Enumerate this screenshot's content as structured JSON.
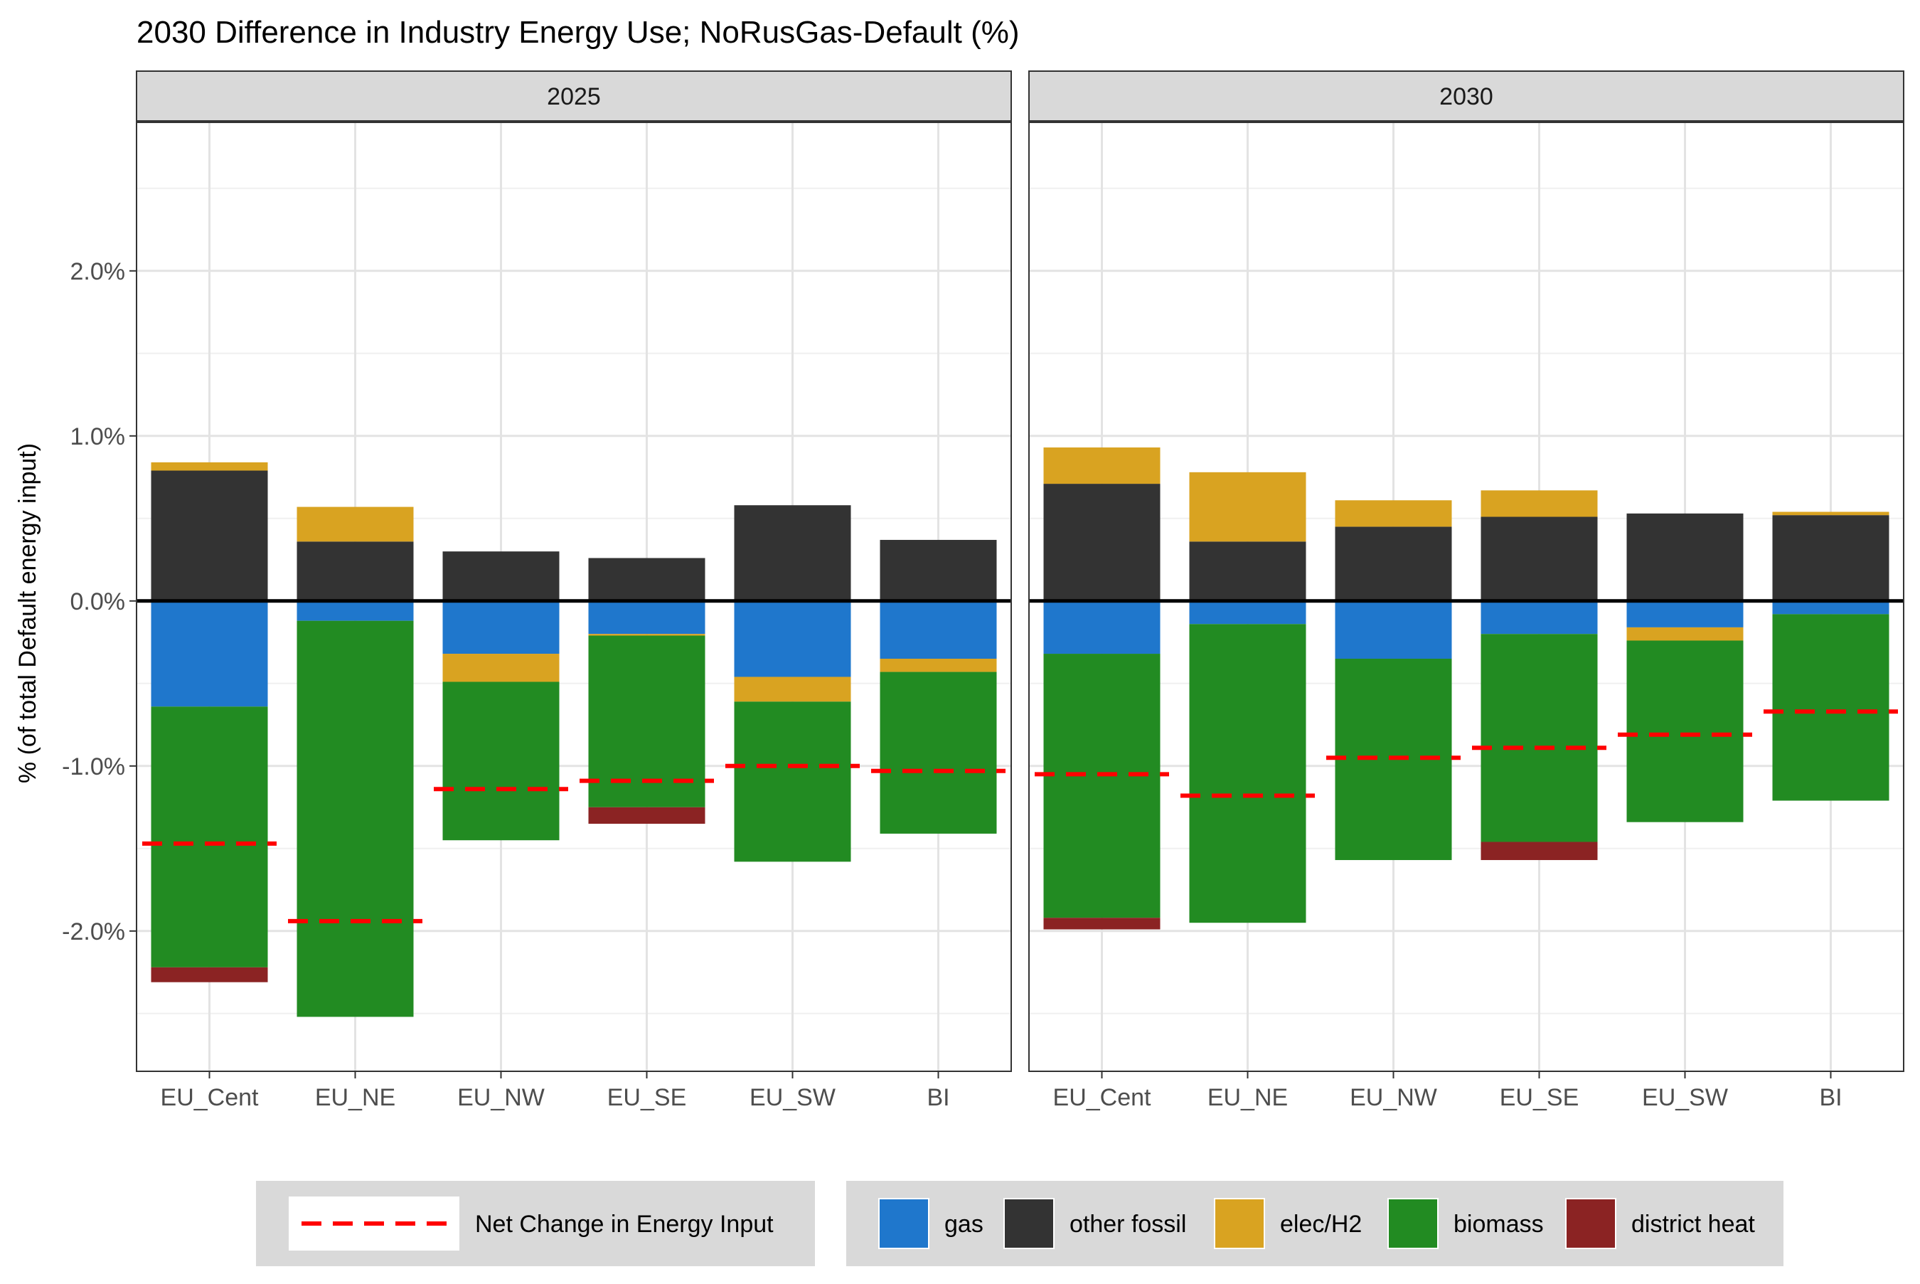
{
  "chart_data": {
    "type": "bar",
    "stacked": true,
    "title": "2030 Difference in Industry Energy Use; NoRusGas-Default (%)",
    "xlabel": "",
    "ylabel": "% (of total Default energy input)",
    "ylim": [
      -2.85,
      2.9
    ],
    "yticks": [
      -2.0,
      -1.0,
      0.0,
      1.0,
      2.0
    ],
    "ytick_labels": [
      "-2.0%",
      "-1.0%",
      "0.0%",
      "1.0%",
      "2.0%"
    ],
    "grid": true,
    "legend_position": "bottom",
    "categories": [
      "EU_Cent",
      "EU_NE",
      "EU_NW",
      "EU_SE",
      "EU_SW",
      "BI"
    ],
    "colors": {
      "gas": "#1f77cc",
      "other fossil": "#333333",
      "elec/H2": "#d9a321",
      "biomass": "#228b22",
      "district heat": "#8b2323",
      "net": "#ff0000"
    },
    "legend": {
      "line": [
        {
          "key": "net",
          "label": "Net Change in Energy Input"
        }
      ],
      "fill": [
        {
          "key": "gas",
          "label": "gas"
        },
        {
          "key": "other fossil",
          "label": "other fossil"
        },
        {
          "key": "elec/H2",
          "label": "elec/H2"
        },
        {
          "key": "biomass",
          "label": "biomass"
        },
        {
          "key": "district heat",
          "label": "district heat"
        }
      ]
    },
    "stack_order": {
      "positive": [
        "other fossil",
        "elec/H2"
      ],
      "negative": [
        "gas",
        "elec/H2",
        "biomass",
        "district heat"
      ]
    },
    "panels": [
      {
        "title": "2025",
        "series": [
          {
            "name": "gas",
            "values": [
              -0.64,
              -0.12,
              -0.32,
              -0.2,
              -0.46,
              -0.35
            ]
          },
          {
            "name": "other fossil",
            "values": [
              0.79,
              0.36,
              0.3,
              0.26,
              0.58,
              0.37
            ]
          },
          {
            "name": "elec/H2",
            "values": [
              0.05,
              0.21,
              -0.17,
              -0.01,
              -0.15,
              -0.08
            ]
          },
          {
            "name": "biomass",
            "values": [
              -1.58,
              -2.4,
              -0.96,
              -1.04,
              -0.97,
              -0.98
            ]
          },
          {
            "name": "district heat",
            "values": [
              -0.09,
              0.0,
              0.0,
              -0.1,
              0.0,
              0.0
            ]
          }
        ],
        "net": [
          -1.47,
          -1.94,
          -1.14,
          -1.09,
          -1.0,
          -1.03
        ]
      },
      {
        "title": "2030",
        "series": [
          {
            "name": "gas",
            "values": [
              -0.32,
              -0.14,
              -0.35,
              -0.2,
              -0.16,
              -0.08
            ]
          },
          {
            "name": "other fossil",
            "values": [
              0.71,
              0.36,
              0.45,
              0.51,
              0.53,
              0.52
            ]
          },
          {
            "name": "elec/H2",
            "values": [
              0.22,
              0.42,
              0.16,
              0.16,
              -0.08,
              0.02
            ]
          },
          {
            "name": "biomass",
            "values": [
              -1.6,
              -1.81,
              -1.22,
              -1.26,
              -1.1,
              -1.13
            ]
          },
          {
            "name": "district heat",
            "values": [
              -0.07,
              0.0,
              0.0,
              -0.11,
              0.0,
              0.0
            ]
          }
        ],
        "net": [
          -1.05,
          -1.18,
          -0.95,
          -0.89,
          -0.81,
          -0.67
        ]
      }
    ]
  }
}
